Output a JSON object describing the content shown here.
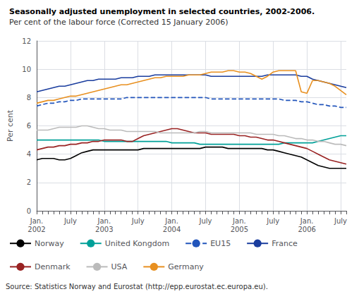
{
  "chart_data": {
    "type": "line",
    "title": "Seasonally adjusted unemployment in selected countries, 2002-2006.",
    "subtitle": "Per cent of the labour force (Corrected 15 January 2006)",
    "ylabel": "Per cent",
    "annotations": [
      "Source: Statistics Norway and Eurostat (http://epp.eurostat.ec.europa.eu)."
    ],
    "categories": [
      "Jan.\n2002",
      null,
      null,
      null,
      null,
      null,
      "July",
      null,
      null,
      null,
      null,
      null,
      "Jan.\n2003",
      null,
      null,
      null,
      null,
      null,
      "July",
      null,
      null,
      null,
      null,
      null,
      "Jan.\n2004",
      null,
      null,
      null,
      null,
      null,
      "July",
      null,
      null,
      null,
      null,
      null,
      "Jan.\n2005",
      null,
      null,
      null,
      null,
      null,
      "July",
      null,
      null,
      null,
      null,
      null,
      "Jan.\n2006",
      null,
      null,
      null,
      null,
      null,
      "July",
      null
    ],
    "ylim": [
      0,
      12
    ],
    "yticks": [
      0,
      2,
      4,
      6,
      8,
      10,
      12
    ],
    "grid": true,
    "legend": "bottom",
    "series": [
      {
        "name": "Norway",
        "color": "#000000",
        "line_style": "solid",
        "values": [
          3.6,
          3.7,
          3.7,
          3.7,
          3.6,
          3.6,
          3.7,
          3.9,
          4.1,
          4.2,
          4.3,
          4.3,
          4.3,
          4.3,
          4.3,
          4.3,
          4.3,
          4.3,
          4.3,
          4.4,
          4.4,
          4.4,
          4.4,
          4.4,
          4.4,
          4.4,
          4.4,
          4.4,
          4.4,
          4.4,
          4.5,
          4.5,
          4.5,
          4.5,
          4.4,
          4.4,
          4.4,
          4.4,
          4.4,
          4.4,
          4.4,
          4.3,
          4.3,
          4.2,
          4.1,
          4.0,
          3.9,
          3.8,
          3.6,
          3.4,
          3.2,
          3.1,
          3.0,
          3.0,
          3.0,
          3.0
        ]
      },
      {
        "name": "United Kongdom",
        "color": "#00A098",
        "line_style": "solid",
        "values": [
          5.0,
          5.0,
          5.0,
          5.0,
          5.0,
          5.0,
          5.0,
          5.0,
          5.0,
          5.0,
          5.0,
          5.0,
          4.9,
          4.9,
          4.9,
          4.9,
          4.9,
          4.9,
          4.9,
          4.9,
          4.9,
          4.9,
          4.9,
          4.9,
          4.8,
          4.8,
          4.8,
          4.8,
          4.8,
          4.7,
          4.7,
          4.7,
          4.7,
          4.7,
          4.7,
          4.7,
          4.7,
          4.7,
          4.7,
          4.7,
          4.7,
          4.7,
          4.7,
          4.7,
          4.8,
          4.8,
          4.8,
          4.8,
          4.8,
          4.8,
          4.9,
          5.0,
          5.1,
          5.2,
          5.3,
          5.3
        ]
      },
      {
        "name": "EU15",
        "color": "#2255BB",
        "line_style": "dashed",
        "values": [
          7.4,
          7.5,
          7.6,
          7.6,
          7.7,
          7.7,
          7.8,
          7.8,
          7.9,
          7.9,
          7.9,
          7.9,
          7.9,
          7.9,
          7.9,
          7.9,
          8.0,
          8.0,
          8.0,
          8.0,
          8.0,
          8.0,
          8.0,
          8.0,
          8.0,
          8.0,
          8.0,
          8.0,
          8.0,
          8.0,
          8.0,
          7.9,
          7.9,
          7.9,
          7.9,
          7.9,
          7.9,
          7.9,
          7.9,
          7.9,
          7.9,
          7.9,
          7.9,
          7.9,
          7.8,
          7.8,
          7.8,
          7.7,
          7.7,
          7.6,
          7.5,
          7.5,
          7.4,
          7.4,
          7.3,
          7.3
        ]
      },
      {
        "name": "France",
        "color": "#1A3D9E",
        "line_style": "solid",
        "values": [
          8.4,
          8.5,
          8.6,
          8.7,
          8.8,
          8.8,
          8.9,
          9.0,
          9.1,
          9.2,
          9.2,
          9.3,
          9.3,
          9.3,
          9.3,
          9.4,
          9.4,
          9.4,
          9.5,
          9.5,
          9.5,
          9.6,
          9.6,
          9.6,
          9.6,
          9.6,
          9.6,
          9.6,
          9.6,
          9.6,
          9.6,
          9.5,
          9.5,
          9.5,
          9.5,
          9.5,
          9.5,
          9.5,
          9.5,
          9.5,
          9.5,
          9.6,
          9.6,
          9.6,
          9.6,
          9.6,
          9.6,
          9.5,
          9.5,
          9.3,
          9.2,
          9.1,
          9.0,
          8.9,
          8.8,
          8.7
        ]
      },
      {
        "name": "Denmark",
        "color": "#992222",
        "line_style": "solid",
        "values": [
          4.3,
          4.4,
          4.5,
          4.5,
          4.6,
          4.6,
          4.7,
          4.7,
          4.8,
          4.8,
          4.9,
          4.9,
          5.0,
          5.0,
          5.0,
          5.0,
          4.9,
          4.9,
          5.1,
          5.3,
          5.4,
          5.5,
          5.6,
          5.7,
          5.8,
          5.8,
          5.7,
          5.6,
          5.5,
          5.5,
          5.5,
          5.4,
          5.4,
          5.4,
          5.4,
          5.4,
          5.3,
          5.3,
          5.2,
          5.2,
          5.1,
          5.0,
          5.0,
          4.9,
          4.8,
          4.7,
          4.6,
          4.5,
          4.4,
          4.2,
          4.0,
          3.8,
          3.6,
          3.5,
          3.4,
          3.3
        ]
      },
      {
        "name": "USA",
        "color": "#BBBBBB",
        "line_style": "solid",
        "values": [
          5.7,
          5.7,
          5.7,
          5.8,
          5.9,
          5.9,
          5.9,
          5.9,
          6.0,
          6.0,
          5.9,
          5.8,
          5.8,
          5.7,
          5.7,
          5.7,
          5.6,
          5.6,
          5.6,
          5.6,
          5.6,
          5.6,
          5.5,
          5.5,
          5.5,
          5.5,
          5.5,
          5.5,
          5.5,
          5.6,
          5.6,
          5.5,
          5.5,
          5.5,
          5.5,
          5.5,
          5.5,
          5.5,
          5.5,
          5.4,
          5.4,
          5.4,
          5.4,
          5.3,
          5.3,
          5.2,
          5.1,
          5.1,
          5.0,
          5.0,
          4.9,
          4.9,
          4.8,
          4.7,
          4.7,
          4.6
        ]
      },
      {
        "name": "Germany",
        "color": "#E89020",
        "line_style": "solid",
        "values": [
          7.6,
          7.7,
          7.8,
          7.8,
          7.9,
          8.0,
          8.1,
          8.1,
          8.2,
          8.3,
          8.4,
          8.5,
          8.6,
          8.7,
          8.8,
          8.9,
          8.9,
          9.0,
          9.1,
          9.2,
          9.3,
          9.4,
          9.4,
          9.5,
          9.5,
          9.5,
          9.5,
          9.6,
          9.6,
          9.6,
          9.7,
          9.8,
          9.8,
          9.8,
          9.9,
          9.9,
          9.8,
          9.8,
          9.7,
          9.5,
          9.3,
          9.5,
          9.8,
          9.9,
          9.9,
          9.9,
          9.9,
          8.4,
          8.3,
          9.2,
          9.2,
          9.1,
          9.0,
          8.8,
          8.5,
          8.2
        ]
      }
    ]
  }
}
